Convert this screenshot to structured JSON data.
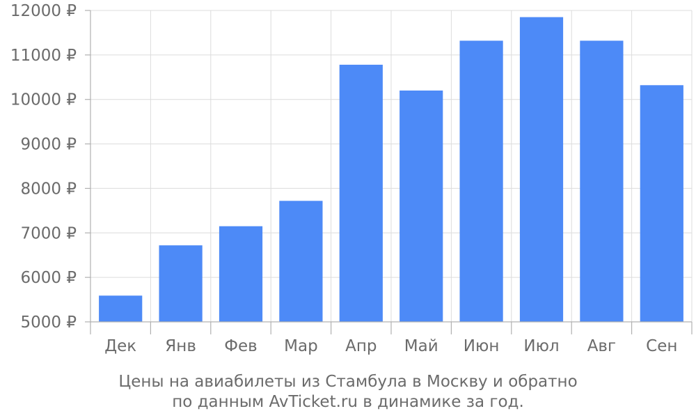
{
  "chart_data": {
    "type": "bar",
    "categories": [
      "Дек",
      "Янв",
      "Фев",
      "Мар",
      "Апр",
      "Май",
      "Июн",
      "Июл",
      "Авг",
      "Сен"
    ],
    "values": [
      5590,
      6720,
      7150,
      7720,
      10780,
      10200,
      11320,
      11850,
      11320,
      10320
    ],
    "ylim": [
      5000,
      12000
    ],
    "yticks": [
      5000,
      6000,
      7000,
      8000,
      9000,
      10000,
      11000,
      12000
    ],
    "ytick_labels": [
      "5000 ₽",
      "6000 ₽",
      "7000 ₽",
      "8000 ₽",
      "9000 ₽",
      "10000 ₽",
      "11000 ₽",
      "12000 ₽"
    ],
    "bar_color": "#4d8af7",
    "grid": true,
    "caption_lines": [
      "Цены на авиабилеты из Стамбула в Москву и обратно",
      "по данным AvTicket.ru в динамике за год."
    ]
  }
}
